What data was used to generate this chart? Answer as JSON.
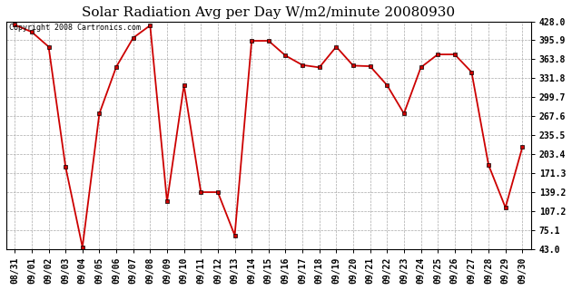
{
  "title": "Solar Radiation Avg per Day W/m2/minute 20080930",
  "copyright": "Copyright 2008 Cartronics.com",
  "dates": [
    "08/31",
    "09/01",
    "09/02",
    "09/03",
    "09/04",
    "09/05",
    "09/06",
    "09/07",
    "09/08",
    "09/09",
    "09/10",
    "09/11",
    "09/12",
    "09/13",
    "09/14",
    "09/15",
    "09/16",
    "09/17",
    "09/18",
    "09/19",
    "09/20",
    "09/21",
    "09/22",
    "09/23",
    "09/24",
    "09/25",
    "09/26",
    "09/27",
    "09/28",
    "09/29",
    "09/30"
  ],
  "values": [
    422.0,
    410.0,
    385.0,
    182.0,
    46.0,
    272.0,
    351.0,
    400.0,
    421.0,
    123.0,
    320.0,
    139.0,
    139.0,
    66.0,
    395.0,
    395.0,
    370.0,
    354.0,
    350.0,
    385.0,
    353.0,
    352.0,
    320.0,
    272.0,
    350.0,
    372.0,
    372.0,
    342.0,
    185.0,
    113.0,
    215.0
  ],
  "line_color": "#cc0000",
  "marker": "s",
  "marker_size": 2.5,
  "marker_edge_color": "#000000",
  "bg_color": "#ffffff",
  "grid_color": "#aaaaaa",
  "ylim": [
    43.0,
    428.0
  ],
  "yticks": [
    43.0,
    75.1,
    107.2,
    139.2,
    171.3,
    203.4,
    235.5,
    267.6,
    299.7,
    331.8,
    363.8,
    395.9,
    428.0
  ],
  "title_fontsize": 11,
  "tick_fontsize": 7,
  "copyright_fontsize": 6
}
